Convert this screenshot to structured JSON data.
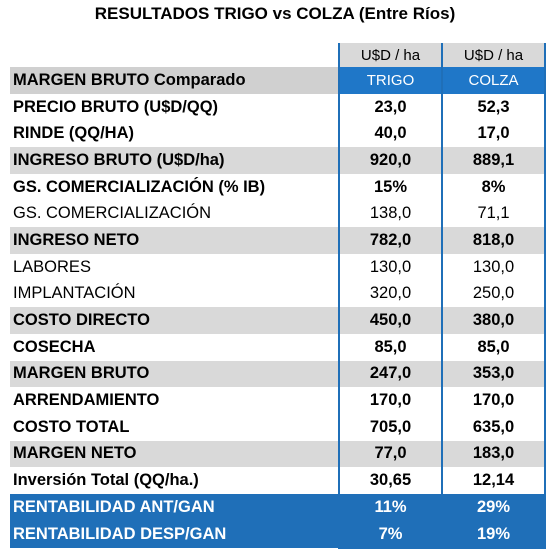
{
  "title": "RESULTADOS TRIGO vs COLZA (Entre Ríos)",
  "table": {
    "header": [
      "U$D / ha",
      "U$D / ha"
    ],
    "columns": [
      "MARGEN BRUTO Comparado",
      "TRIGO",
      "COLZA"
    ],
    "rows": [
      [
        "PRECIO BRUTO (U$D/QQ)",
        "23,0",
        "52,3"
      ],
      [
        "RINDE (QQ/HA)",
        "40,0",
        "17,0"
      ],
      [
        "INGRESO BRUTO (U$D/ha)",
        "920,0",
        "889,1"
      ],
      [
        "GS. COMERCIALIZACIÓN (% IB)",
        "15%",
        "8%"
      ],
      [
        "GS. COMERCIALIZACIÓN",
        "138,0",
        "71,1"
      ],
      [
        "INGRESO NETO",
        "782,0",
        "818,0"
      ],
      [
        "LABORES",
        "130,0",
        "130,0"
      ],
      [
        "IMPLANTACIÓN",
        "320,0",
        "250,0"
      ],
      [
        "COSTO DIRECTO",
        "450,0",
        "380,0"
      ],
      [
        "COSECHA",
        "85,0",
        "85,0"
      ],
      [
        "MARGEN BRUTO",
        "247,0",
        "353,0"
      ],
      [
        "ARRENDAMIENTO",
        "170,0",
        "170,0"
      ],
      [
        "COSTO TOTAL",
        "705,0",
        "635,0"
      ],
      [
        "MARGEN NETO",
        "77,0",
        "183,0"
      ],
      [
        "Inversión Total (QQ/ha.)",
        "30,65",
        "12,14"
      ],
      [
        "RENTABILIDAD ANT/GAN",
        "11%",
        "29%"
      ],
      [
        "RENTABILIDAD DESP/GAN",
        "7%",
        "19%"
      ]
    ]
  }
}
